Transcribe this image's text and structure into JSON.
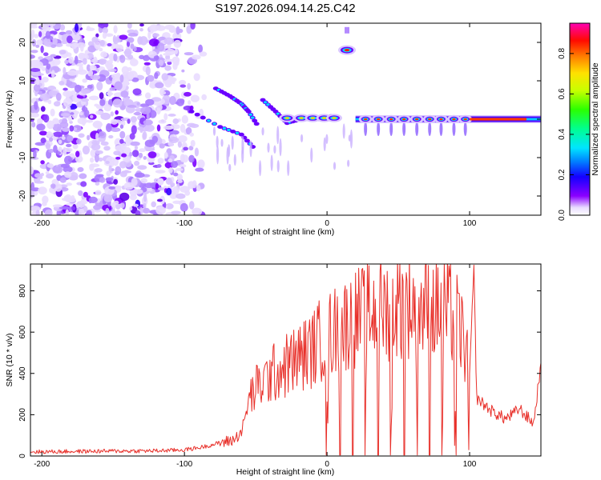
{
  "figure": {
    "title": "S197.2026.094.14.25.C42"
  },
  "chart_data": [
    {
      "type": "heatmap",
      "title": "S197.2026.094.14.25.C42",
      "xlabel": "Height of straight line (km)",
      "ylabel": "Frequency (Hz)",
      "xlim": [
        -208,
        150
      ],
      "ylim": [
        -25,
        25
      ],
      "xticks": [
        -200,
        -100,
        0,
        100
      ],
      "xtick_labels": [
        "-200",
        "-100",
        "0",
        "100"
      ],
      "yticks": [
        -20,
        -10,
        0,
        10,
        20
      ],
      "ytick_labels": [
        "-20",
        "-10",
        "0",
        "10",
        "20"
      ],
      "colorbar": {
        "label": "Normalized spectral amplitude",
        "range": [
          0,
          0.95
        ],
        "ticks": [
          0,
          0.2,
          0.4,
          0.6,
          0.8
        ],
        "tick_labels": [
          "0.0",
          "0.2",
          "0.4",
          "0.6",
          "0.8"
        ]
      },
      "features": {
        "noise_x_range": [
          -208,
          -85
        ],
        "carrier_x_range": [
          20,
          150
        ],
        "carrier_frequency": 0,
        "tone_blobs_x": [
          27,
          36,
          45,
          54,
          63,
          72,
          80,
          89,
          97
        ],
        "bright_spot": {
          "x": 14,
          "y": 18
        },
        "converging_lines": [
          {
            "x": [
              -95,
              -75,
              -60,
              -50
            ],
            "y": [
              2,
              -2,
              -4,
              -8
            ]
          },
          {
            "x": [
              -78,
              -68,
              -60,
              -55,
              -48
            ],
            "y": [
              8,
              6,
              4,
              2,
              -2
            ]
          },
          {
            "x": [
              -45,
              -36,
              -28,
              -18,
              -6,
              5
            ],
            "y": [
              5,
              2,
              -1,
              0,
              0,
              1
            ]
          }
        ]
      }
    },
    {
      "type": "line",
      "xlabel": "Height of straight line (km)",
      "ylabel": "SNR (10 * v/v)",
      "xlim": [
        -208,
        150
      ],
      "ylim": [
        0,
        930
      ],
      "xticks": [
        -200,
        -100,
        0,
        100
      ],
      "xtick_labels": [
        "-200",
        "-100",
        "0",
        "100"
      ],
      "yticks": [
        0,
        200,
        400,
        600,
        800
      ],
      "ytick_labels": [
        "0",
        "200",
        "400",
        "600",
        "800"
      ],
      "series": [
        {
          "name": "SNR",
          "color": "#e8302a",
          "x": [
            -208,
            -180,
            -150,
            -120,
            -100,
            -90,
            -80,
            -75,
            -70,
            -65,
            -60,
            -55,
            -50,
            -45,
            -40,
            -35,
            -30,
            -25,
            -20,
            -15,
            -10,
            -5,
            0,
            5,
            10,
            15,
            20,
            25,
            30,
            35,
            40,
            45,
            50,
            55,
            60,
            65,
            70,
            75,
            80,
            85,
            90,
            95,
            100,
            103,
            105,
            110,
            115,
            120,
            125,
            130,
            135,
            140,
            145,
            150
          ],
          "y": [
            20,
            22,
            24,
            25,
            30,
            40,
            55,
            65,
            70,
            80,
            120,
            250,
            300,
            330,
            360,
            380,
            400,
            420,
            440,
            460,
            480,
            520,
            540,
            560,
            580,
            600,
            620,
            630,
            640,
            650,
            660,
            670,
            680,
            690,
            680,
            670,
            665,
            660,
            655,
            650,
            620,
            540,
            400,
            900,
            280,
            250,
            220,
            200,
            180,
            200,
            230,
            190,
            160,
            450
          ]
        }
      ]
    }
  ]
}
